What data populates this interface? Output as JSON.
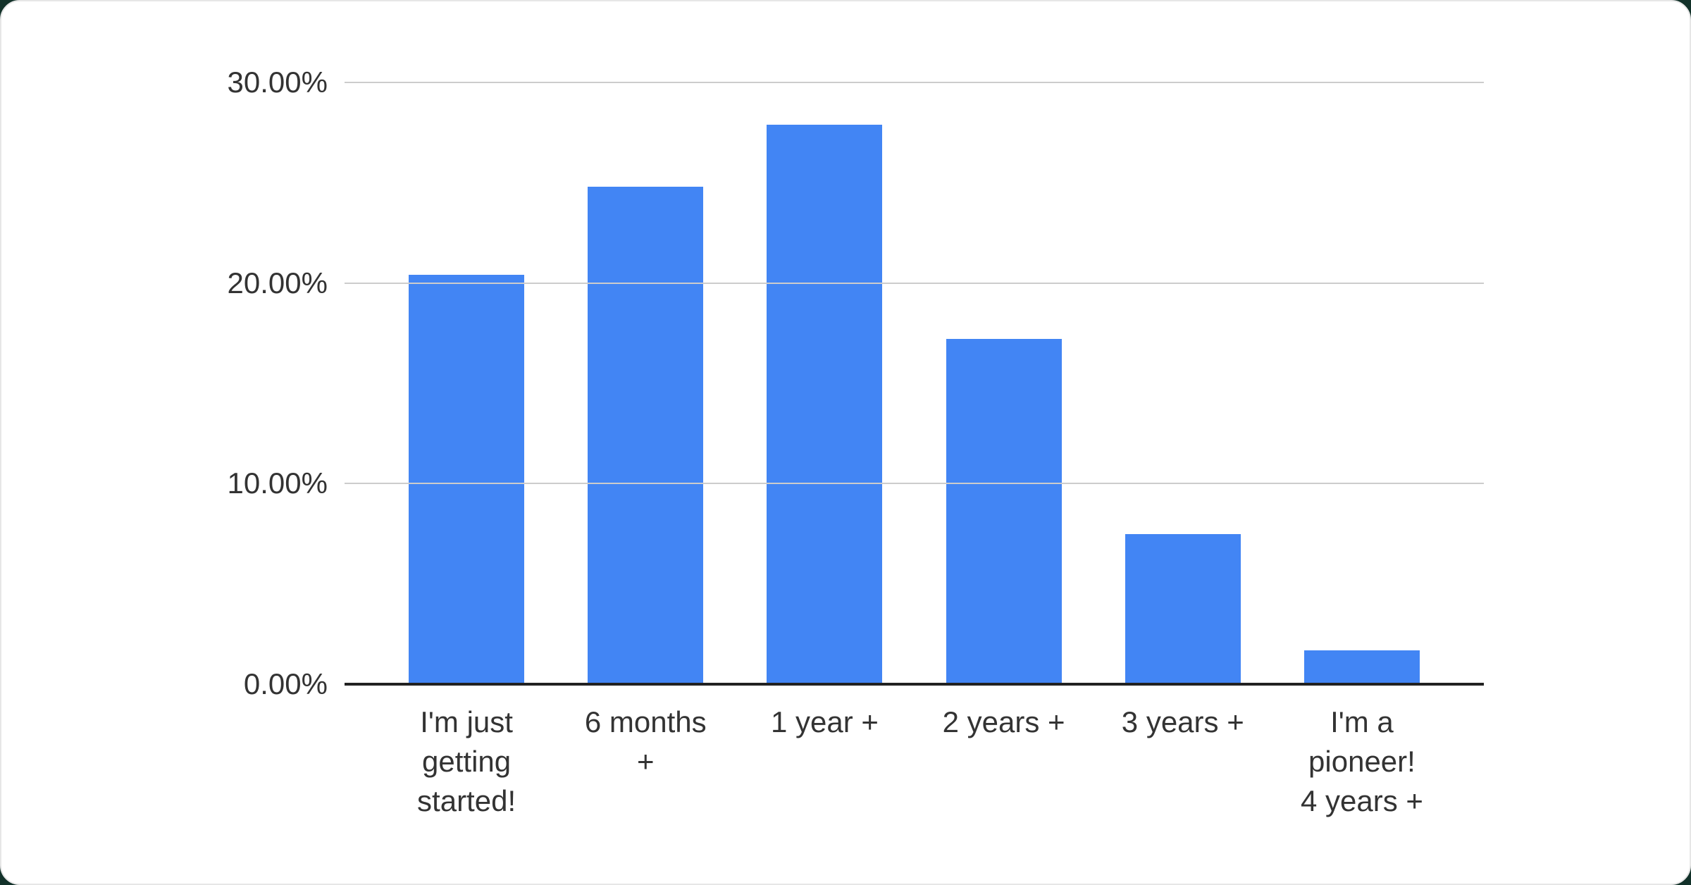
{
  "chart_data": {
    "type": "bar",
    "title": "",
    "xlabel": "",
    "ylabel": "",
    "categories": [
      "I'm just getting started!",
      "6 months +",
      "1 year +",
      "2 years +",
      "3 years +",
      "I'm a pioneer! 4 years +"
    ],
    "values": [
      20.4,
      24.8,
      27.9,
      17.2,
      7.5,
      1.7
    ],
    "value_format": "percent",
    "ylim": [
      0,
      30
    ],
    "y_ticks": [
      {
        "value": 30,
        "label": "30.00%"
      },
      {
        "value": 20,
        "label": "20.00%"
      },
      {
        "value": 10,
        "label": "10.00%"
      },
      {
        "value": 0,
        "label": "0.00%"
      }
    ],
    "x_tick_lines": [
      [
        "I'm just",
        "getting",
        "started!"
      ],
      [
        "6 months",
        "+"
      ],
      [
        "1 year +"
      ],
      [
        "2 years +"
      ],
      [
        "3 years +"
      ],
      [
        "I'm a",
        "pioneer!",
        "4 years +"
      ]
    ],
    "grid": true,
    "legend": "none",
    "colors": {
      "bar": "#4285f4",
      "gridline": "#cccccc",
      "axis_line": "#222222",
      "tick_label": "#333333",
      "card_background": "#ffffff",
      "page_background": "#123129"
    }
  }
}
